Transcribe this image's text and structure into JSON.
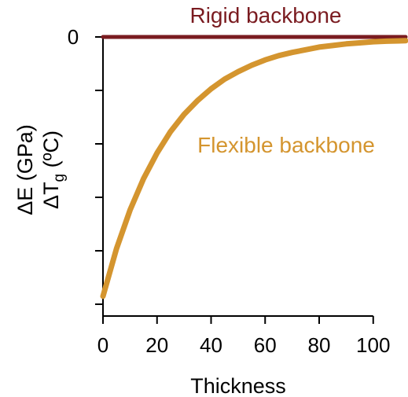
{
  "chart_data": {
    "type": "line",
    "title": "",
    "xlabel": "Thickness",
    "ylabel_line1": "ΔE (GPa)",
    "ylabel_line2_prefix": "ΔT",
    "ylabel_line2_sub": "g",
    "ylabel_line2_suffix": " (ºC)",
    "xlim": [
      0,
      112
    ],
    "ylim": [
      -5,
      0
    ],
    "xticks": [
      0,
      20,
      40,
      60,
      80,
      100
    ],
    "yticks": [
      -5,
      -4,
      -3,
      -2,
      -1,
      0
    ],
    "ytick_labels": [
      "",
      "",
      "",
      "",
      "",
      "0"
    ],
    "grid": false,
    "legend": "none",
    "series": [
      {
        "name": "Rigid backbone",
        "color": "#7a1b20",
        "x": [
          0,
          112
        ],
        "y": [
          0,
          0
        ]
      },
      {
        "name": "Flexible backbone",
        "color": "#d4952f",
        "x": [
          0,
          5,
          10,
          15,
          20,
          25,
          30,
          35,
          40,
          45,
          50,
          55,
          60,
          65,
          70,
          75,
          80,
          85,
          90,
          95,
          100,
          105,
          112
        ],
        "y": [
          -4.85,
          -3.96,
          -3.24,
          -2.65,
          -2.17,
          -1.77,
          -1.45,
          -1.19,
          -0.97,
          -0.79,
          -0.65,
          -0.53,
          -0.43,
          -0.35,
          -0.29,
          -0.24,
          -0.19,
          -0.16,
          -0.13,
          -0.11,
          -0.09,
          -0.08,
          -0.07
        ]
      }
    ]
  }
}
